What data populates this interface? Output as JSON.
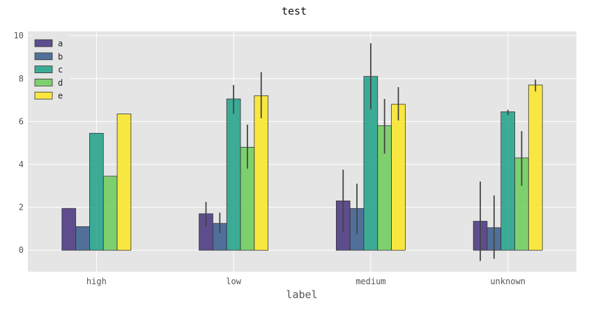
{
  "chart_data": {
    "type": "bar",
    "title": "test",
    "xlabel": "label",
    "ylabel": "",
    "ylim": [
      -1,
      10.2
    ],
    "yticks": [
      0,
      2,
      4,
      6,
      8,
      10
    ],
    "grid": true,
    "legend_position": "top-left",
    "categories": [
      "high",
      "low",
      "medium",
      "unknown"
    ],
    "series": [
      {
        "name": "a",
        "color": "#46327e",
        "values": [
          1.95,
          1.7,
          2.3,
          1.35
        ],
        "err_low": [
          null,
          1.1,
          0.85,
          -0.5
        ],
        "err_high": [
          null,
          2.25,
          3.75,
          3.2
        ]
      },
      {
        "name": "b",
        "color": "#365c8d",
        "values": [
          1.1,
          1.25,
          1.95,
          1.05
        ],
        "err_low": [
          null,
          0.8,
          0.75,
          -0.4
        ],
        "err_high": [
          null,
          1.75,
          3.1,
          2.55
        ]
      },
      {
        "name": "c",
        "color": "#1fa187",
        "values": [
          5.45,
          7.05,
          8.1,
          6.45
        ],
        "err_low": [
          null,
          6.35,
          6.55,
          6.3
        ],
        "err_high": [
          null,
          7.7,
          9.65,
          6.55
        ]
      },
      {
        "name": "d",
        "color": "#6ccd5a",
        "values": [
          3.45,
          4.8,
          5.8,
          4.3
        ],
        "err_low": [
          null,
          3.8,
          4.5,
          3.0
        ],
        "err_high": [
          null,
          5.85,
          7.05,
          5.55
        ]
      },
      {
        "name": "e",
        "color": "#fde725",
        "values": [
          6.35,
          7.2,
          6.8,
          7.7
        ],
        "err_low": [
          null,
          6.15,
          6.05,
          7.4
        ],
        "err_high": [
          null,
          8.3,
          7.6,
          7.95
        ]
      }
    ]
  }
}
